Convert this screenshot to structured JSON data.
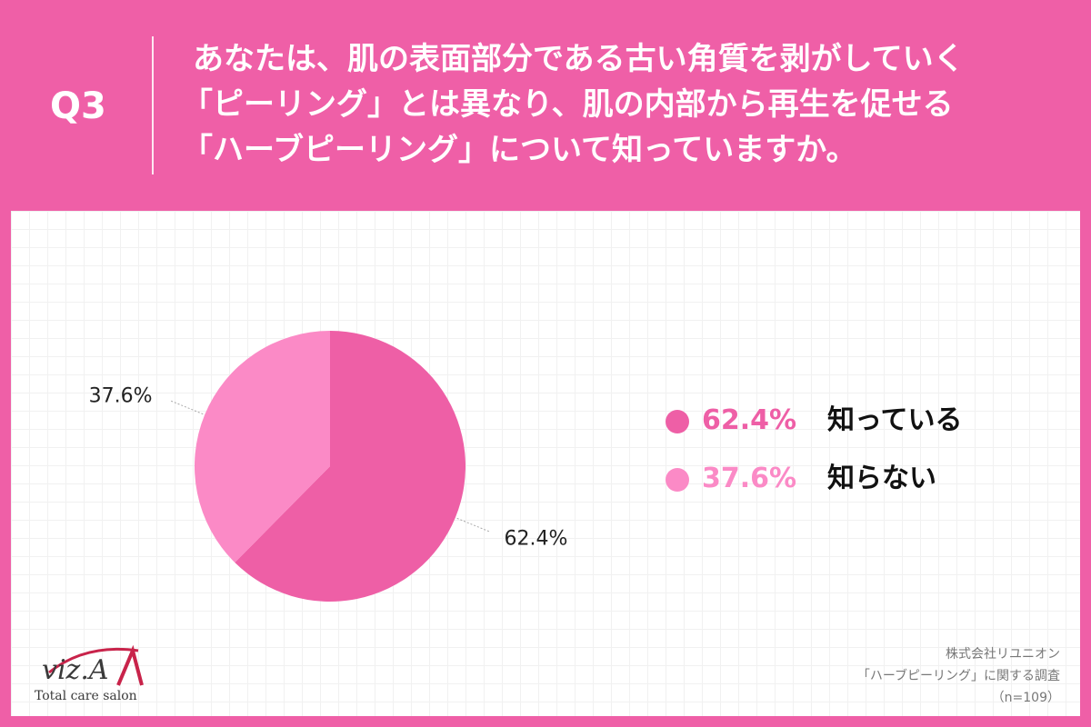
{
  "header": {
    "qlabel": "Q3",
    "question_lines": [
      "あなたは、肌の表面部分である古い角質を剥がしていく",
      "「ピーリング」とは異なり、肌の内部から再生を促せる",
      "「ハーブピーリング」について知っていますか。"
    ]
  },
  "chart_data": {
    "type": "pie",
    "title": "",
    "slices": [
      {
        "label": "知っている",
        "value": 62.4,
        "display": "62.4%",
        "color": "#ee5fa6"
      },
      {
        "label": "知らない",
        "value": 37.6,
        "display": "37.6%",
        "color": "#fb8ac6"
      }
    ],
    "legend_position": "right",
    "start_angle": "12 o'clock, clockwise"
  },
  "legend": {
    "items": [
      {
        "pct": "62.4%",
        "label": "知っている",
        "color": "#ee5fa6"
      },
      {
        "pct": "37.6%",
        "label": "知らない",
        "color": "#fb8ac6"
      }
    ]
  },
  "logo": {
    "script": "viz.A",
    "tagline": "Total care salon"
  },
  "source": {
    "company": "株式会社リユニオン",
    "survey": "「ハーブピーリング」に関する調査",
    "n": "（n=109）"
  },
  "colors": {
    "background": "#ef5fa7",
    "panel": "#ffffff"
  }
}
